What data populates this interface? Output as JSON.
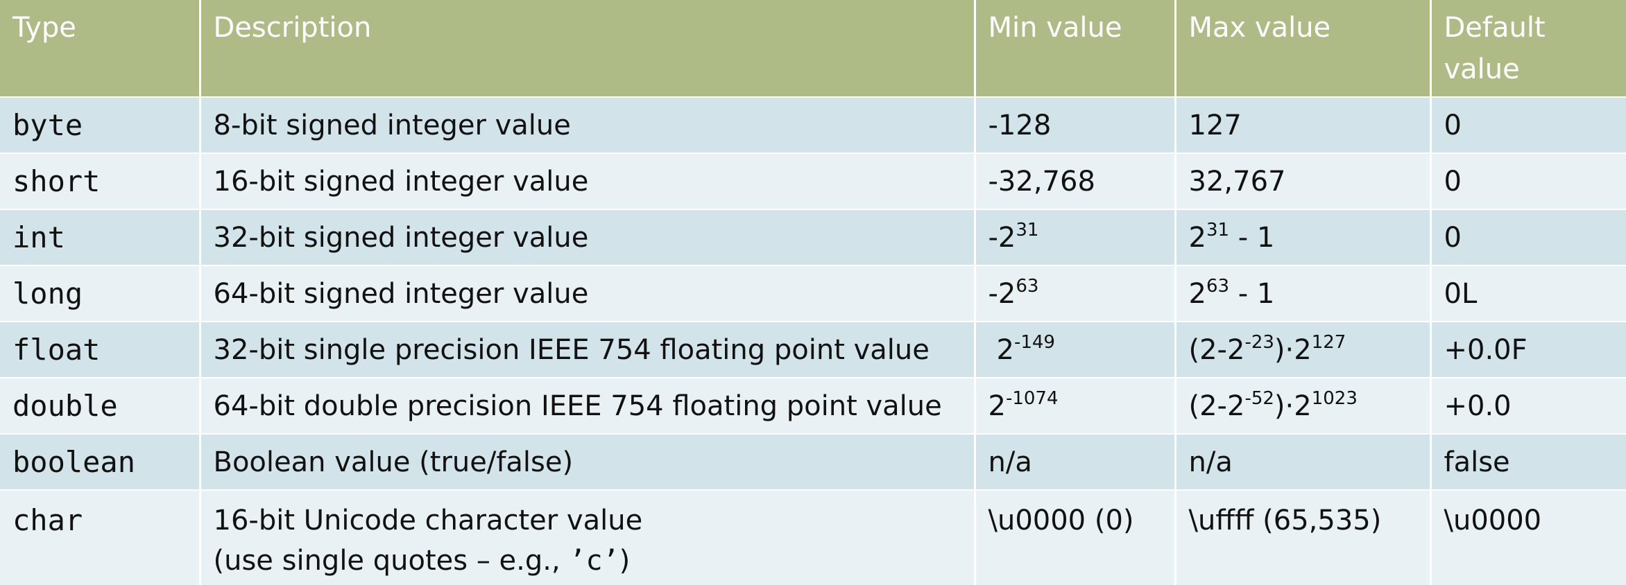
{
  "headers": {
    "type": "Type",
    "description": "Description",
    "min": "Min value",
    "max": "Max value",
    "default_line1": "Default",
    "default_line2": "value"
  },
  "rows": [
    {
      "type": "byte",
      "description": "8-bit signed integer value",
      "min": "-128",
      "max": "127",
      "default": "0"
    },
    {
      "type": "short",
      "description": "16-bit signed integer value",
      "min": "-32,768",
      "max": "32,767",
      "default": "0"
    },
    {
      "type": "int",
      "description": "32-bit signed integer value",
      "min_base": "-2",
      "min_exp": "31",
      "max_base": "2",
      "max_exp": "31",
      "max_tail": " - 1",
      "default": "0"
    },
    {
      "type": "long",
      "description": "64-bit signed integer value",
      "min_base": "-2",
      "min_exp": "63",
      "max_base": "2",
      "max_exp": "63",
      "max_tail": " - 1",
      "default": "0L"
    },
    {
      "type": "float",
      "description": "32-bit single precision IEEE 754 floating point value",
      "min_base": "2",
      "min_exp": "-149",
      "max_a": "(2-2",
      "max_a_exp": "-23",
      "max_b": ")·2",
      "max_b_exp": "127",
      "default": "+0.0F"
    },
    {
      "type": "double",
      "description": "64-bit double precision IEEE 754 floating point value",
      "min_base": "2",
      "min_exp": "-1074",
      "max_a": "(2-2",
      "max_a_exp": "-52",
      "max_b": ")·2",
      "max_b_exp": "1023",
      "default": "+0.0"
    },
    {
      "type": "boolean",
      "description": "Boolean value (true/false)",
      "min": "n/a",
      "max": "n/a",
      "default": "false"
    },
    {
      "type": "char",
      "description_line1": "16-bit Unicode character value",
      "description_line2_prefix": "(use single quotes – e.g., ",
      "description_line2_code": "’c’",
      "description_line2_suffix": ")",
      "min": "\\u0000 (0)",
      "max": "\\uffff (65,535)",
      "default": "\\u0000"
    }
  ]
}
